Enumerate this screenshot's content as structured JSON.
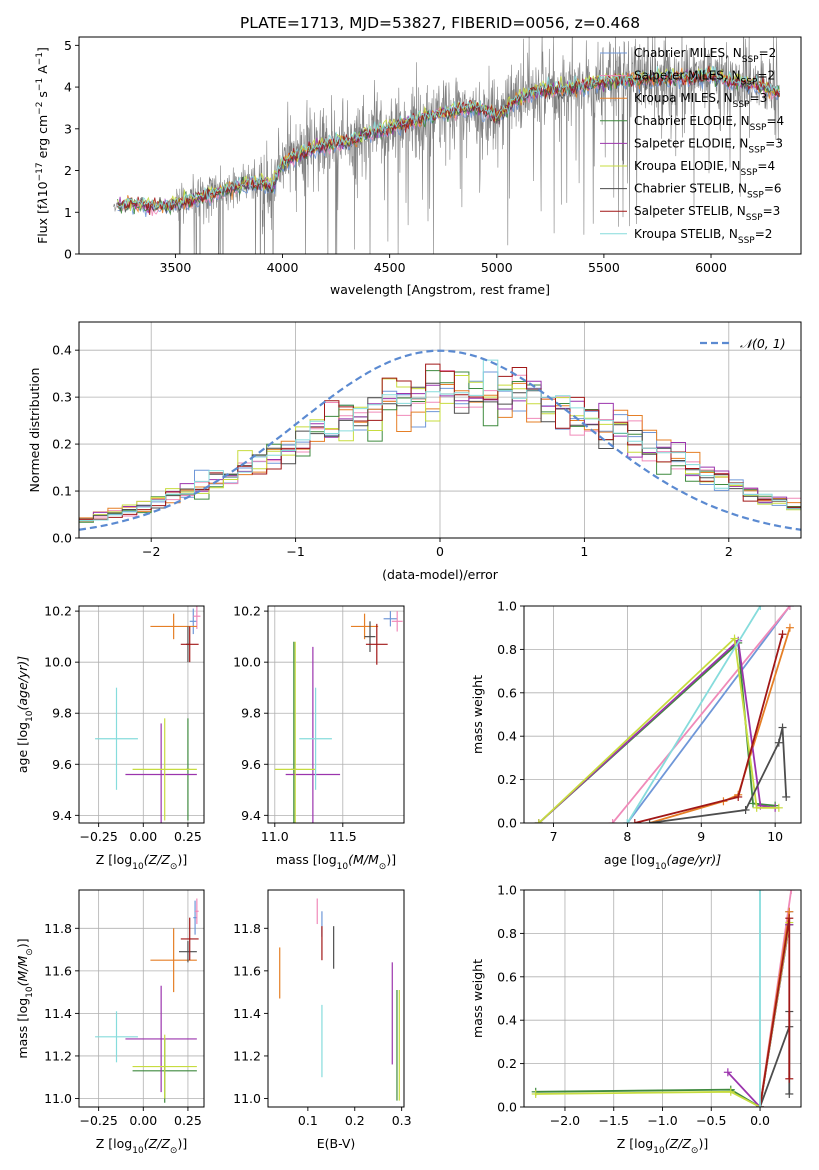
{
  "figure": {
    "title": "PLATE=1713, MJD=53827, FIBERID=0056, z=0.468"
  },
  "colors": {
    "Chabrier MILES": "#6f97d8",
    "Salpeter MILES": "#f08ab9",
    "Kroupa MILES": "#e57f26",
    "Chabrier ELODIE": "#3f8a3f",
    "Salpeter ELODIE": "#9b34ad",
    "Kroupa ELODIE": "#c7dc3f",
    "Chabrier STELIB": "#4d4d4d",
    "Salpeter STELIB": "#a11717",
    "Kroupa STELIB": "#86dcdc",
    "data": "#808080",
    "normal": "#5b8ad1",
    "grid": "#b0b0b0"
  },
  "chart_data": [
    {
      "id": "spectrum",
      "type": "line",
      "title": "PLATE=1713, MJD=53827, FIBERID=0056, z=0.468",
      "xlabel": "wavelength [Angstrom, rest frame]",
      "ylabel": "Flux [f",
      "ylabel_parts": [
        "Flux [f",
        "λ",
        "10",
        "−17",
        " erg cm",
        "−2",
        " s",
        "−1",
        " A",
        "−1",
        "]"
      ],
      "xlim": [
        3050,
        6420
      ],
      "ylim": [
        0,
        5.2
      ],
      "xticks": [
        3500,
        4000,
        4500,
        5000,
        5500,
        6000
      ],
      "yticks": [
        0,
        1,
        2,
        3,
        4,
        5
      ],
      "grid": false,
      "legend_placement": "top-right",
      "legend": [
        {
          "name": "Chabrier MILES",
          "base": "Chabrier MILES, N",
          "sub": "SSP",
          "tail": "=2"
        },
        {
          "name": "Salpeter MILES",
          "base": "Salpeter MILES, N",
          "sub": "SSP",
          "tail": "=2"
        },
        {
          "name": "Kroupa MILES",
          "base": "Kroupa MILES, N",
          "sub": "SSP",
          "tail": "=3"
        },
        {
          "name": "Chabrier ELODIE",
          "base": "Chabrier ELODIE, N",
          "sub": "SSP",
          "tail": "=4"
        },
        {
          "name": "Salpeter ELODIE",
          "base": "Salpeter ELODIE, N",
          "sub": "SSP",
          "tail": "=3"
        },
        {
          "name": "Kroupa ELODIE",
          "base": "Kroupa ELODIE, N",
          "sub": "SSP",
          "tail": "=4"
        },
        {
          "name": "Chabrier STELIB",
          "base": "Chabrier STELIB, N",
          "sub": "SSP",
          "tail": "=6"
        },
        {
          "name": "Salpeter STELIB",
          "base": "Salpeter STELIB, N",
          "sub": "SSP",
          "tail": "=3"
        },
        {
          "name": "Kroupa STELIB",
          "base": "Kroupa STELIB, N",
          "sub": "SSP",
          "tail": "=2"
        }
      ],
      "continuum": {
        "x": [
          3210,
          3300,
          3400,
          3500,
          3600,
          3700,
          3800,
          3900,
          3950,
          4000,
          4100,
          4200,
          4300,
          4400,
          4500,
          4600,
          4700,
          4800,
          4900,
          5000,
          5100,
          5200,
          5300,
          5400,
          5500,
          5600,
          5700,
          5800,
          5900,
          6000,
          6100,
          6200,
          6300
        ],
        "y": [
          1.15,
          1.22,
          1.15,
          1.2,
          1.35,
          1.5,
          1.65,
          1.75,
          1.6,
          2.2,
          2.45,
          2.65,
          2.7,
          2.9,
          3.05,
          3.2,
          3.35,
          3.45,
          3.55,
          3.3,
          3.75,
          3.95,
          3.95,
          4.05,
          4.15,
          4.2,
          4.2,
          4.25,
          4.25,
          4.3,
          4.15,
          4.1,
          3.9
        ]
      },
      "data_x_range": [
        3210,
        6320
      ],
      "data_scatter": 0.6
    },
    {
      "id": "residuals",
      "type": "histogram",
      "xlabel": "(data-model)/error",
      "ylabel": "Normed distribution",
      "xlim": [
        -2.5,
        2.5
      ],
      "ylim": [
        0,
        0.46
      ],
      "xticks": [
        -2,
        -1,
        0,
        1,
        2
      ],
      "yticks": [
        0.0,
        0.1,
        0.2,
        0.3,
        0.4
      ],
      "grid": true,
      "bin_width": 0.1,
      "legend": [
        {
          "name": "normal",
          "label": "𝒩(0, 1)"
        }
      ],
      "legend_placement": "top-right"
    },
    {
      "id": "age-vs-Z",
      "type": "scatter",
      "xlabel": "Z [log",
      "ylabel": "age  [log",
      "xlabel_parts": [
        "Z [log",
        "10",
        "(Z/Z",
        "⊙",
        ")]"
      ],
      "ylabel_parts": [
        "age  [log",
        "10",
        "(age/yr)]"
      ],
      "xlim": [
        -0.36,
        0.34
      ],
      "ylim": [
        9.37,
        10.22
      ],
      "xticks": [
        -0.25,
        0.0,
        0.25
      ],
      "yticks": [
        9.4,
        9.6,
        9.8,
        10.0,
        10.2
      ],
      "grid": true,
      "points": [
        {
          "model": "Chabrier MILES",
          "x": 0.28,
          "y": 10.16,
          "xerr": 0.02,
          "yerr": 0.05
        },
        {
          "model": "Salpeter MILES",
          "x": 0.3,
          "y": 10.18,
          "xerr": 0.02,
          "yerr": 0.05
        },
        {
          "model": "Kroupa MILES",
          "x": 0.17,
          "y": 10.14,
          "xerr": 0.13,
          "yerr": 0.05
        },
        {
          "model": "Chabrier ELODIE",
          "x": 0.25,
          "y": 9.58,
          "xerr": 0.01,
          "yerr": 0.2
        },
        {
          "model": "Salpeter ELODIE",
          "x": 0.1,
          "y": 9.56,
          "xerr": 0.2,
          "yerr": 0.2
        },
        {
          "model": "Kroupa ELODIE",
          "x": 0.12,
          "y": 9.58,
          "xerr": 0.18,
          "yerr": 0.2
        },
        {
          "model": "Chabrier STELIB",
          "x": 0.25,
          "y": 10.07,
          "xerr": 0.01,
          "yerr": 0.07
        },
        {
          "model": "Salpeter STELIB",
          "x": 0.26,
          "y": 10.07,
          "xerr": 0.05,
          "yerr": 0.07
        },
        {
          "model": "Kroupa STELIB",
          "x": -0.15,
          "y": 9.7,
          "xerr": 0.12,
          "yerr": 0.2
        }
      ]
    },
    {
      "id": "age-vs-mass",
      "type": "scatter",
      "xlabel": "mass [log",
      "xlabel_parts": [
        "mass [log",
        "10",
        "(M/M",
        "⊙",
        ")]"
      ],
      "xlim": [
        10.95,
        11.95
      ],
      "ylim": [
        9.37,
        10.22
      ],
      "xticks": [
        11.0,
        11.5
      ],
      "yticks": [
        9.4,
        9.6,
        9.8,
        10.0,
        10.2
      ],
      "grid": true,
      "points": [
        {
          "model": "Chabrier MILES",
          "x": 11.85,
          "y": 10.17,
          "xerr": 0.05,
          "yerr": 0.03
        },
        {
          "model": "Salpeter MILES",
          "x": 11.9,
          "y": 10.16,
          "xerr": 0.04,
          "yerr": 0.04
        },
        {
          "model": "Kroupa MILES",
          "x": 11.66,
          "y": 10.14,
          "xerr": 0.1,
          "yerr": 0.05
        },
        {
          "model": "Chabrier ELODIE",
          "x": 11.14,
          "y": 9.58,
          "xerr": 0.02,
          "yerr": 0.5
        },
        {
          "model": "Salpeter ELODIE",
          "x": 11.28,
          "y": 9.56,
          "xerr": 0.2,
          "yerr": 0.5
        },
        {
          "model": "Kroupa ELODIE",
          "x": 11.15,
          "y": 9.58,
          "xerr": 0.15,
          "yerr": 0.5
        },
        {
          "model": "Chabrier STELIB",
          "x": 11.7,
          "y": 10.1,
          "xerr": 0.04,
          "yerr": 0.06
        },
        {
          "model": "Salpeter STELIB",
          "x": 11.75,
          "y": 10.07,
          "xerr": 0.08,
          "yerr": 0.08
        },
        {
          "model": "Kroupa STELIB",
          "x": 11.3,
          "y": 9.7,
          "xerr": 0.12,
          "yerr": 0.2
        }
      ]
    },
    {
      "id": "mass-weight-vs-age",
      "type": "line",
      "xlabel": "age  [log",
      "ylabel": "mass weight",
      "xlabel_parts": [
        "age  [log",
        "10",
        "(age/yr)]"
      ],
      "xlim": [
        6.6,
        10.35
      ],
      "ylim": [
        0,
        1.0
      ],
      "xticks": [
        7,
        8,
        9,
        10
      ],
      "yticks": [
        0.0,
        0.2,
        0.4,
        0.6,
        0.8,
        1.0
      ],
      "grid": true,
      "series": [
        {
          "model": "Chabrier MILES",
          "x": [
            8.0,
            10.2
          ],
          "y": [
            0.0,
            1.0
          ]
        },
        {
          "model": "Salpeter MILES",
          "x": [
            7.8,
            10.2
          ],
          "y": [
            0.0,
            1.0
          ]
        },
        {
          "model": "Kroupa MILES",
          "x": [
            8.3,
            9.3,
            9.5,
            10.2
          ],
          "y": [
            0.0,
            0.1,
            0.13,
            0.9
          ]
        },
        {
          "model": "Chabrier ELODIE",
          "x": [
            6.8,
            9.5,
            9.7,
            10.0
          ],
          "y": [
            0.0,
            0.83,
            0.09,
            0.08
          ]
        },
        {
          "model": "Salpeter ELODIE",
          "x": [
            6.8,
            9.5,
            9.8,
            10.0
          ],
          "y": [
            0.0,
            0.84,
            0.08,
            0.07
          ]
        },
        {
          "model": "Kroupa ELODIE",
          "x": [
            6.8,
            9.45,
            9.75,
            10.05
          ],
          "y": [
            0.0,
            0.85,
            0.07,
            0.07
          ]
        },
        {
          "model": "Chabrier STELIB",
          "x": [
            8.3,
            9.6,
            10.05,
            10.1,
            10.15
          ],
          "y": [
            0.0,
            0.06,
            0.37,
            0.44,
            0.12
          ]
        },
        {
          "model": "Salpeter STELIB",
          "x": [
            8.1,
            9.5,
            10.1
          ],
          "y": [
            0.0,
            0.12,
            0.87
          ]
        },
        {
          "model": "Kroupa STELIB",
          "x": [
            8.0,
            9.8
          ],
          "y": [
            0.0,
            1.0
          ]
        }
      ]
    },
    {
      "id": "mass-vs-Z",
      "type": "scatter",
      "xlabel": "Z [log",
      "ylabel": "mass [log",
      "xlabel_parts": [
        "Z [log",
        "10",
        "(Z/Z",
        "⊙",
        ")]"
      ],
      "ylabel_parts": [
        "mass [log",
        "10",
        "(M/M",
        "⊙",
        ")]"
      ],
      "xlim": [
        -0.36,
        0.34
      ],
      "ylim": [
        10.96,
        11.98
      ],
      "xticks": [
        -0.25,
        0.0,
        0.25
      ],
      "yticks": [
        11.0,
        11.2,
        11.4,
        11.6,
        11.8
      ],
      "grid": true,
      "points": [
        {
          "model": "Chabrier MILES",
          "x": 0.29,
          "y": 11.85,
          "xerr": 0.01,
          "yerr": 0.08
        },
        {
          "model": "Salpeter MILES",
          "x": 0.3,
          "y": 11.88,
          "xerr": 0.01,
          "yerr": 0.06
        },
        {
          "model": "Kroupa MILES",
          "x": 0.17,
          "y": 11.65,
          "xerr": 0.13,
          "yerr": 0.15
        },
        {
          "model": "Chabrier ELODIE",
          "x": 0.12,
          "y": 11.13,
          "xerr": 0.18,
          "yerr": 0.15
        },
        {
          "model": "Salpeter ELODIE",
          "x": 0.1,
          "y": 11.28,
          "xerr": 0.2,
          "yerr": 0.25
        },
        {
          "model": "Kroupa ELODIE",
          "x": 0.12,
          "y": 11.15,
          "xerr": 0.18,
          "yerr": 0.15
        },
        {
          "model": "Chabrier STELIB",
          "x": 0.25,
          "y": 11.69,
          "xerr": 0.05,
          "yerr": 0.05
        },
        {
          "model": "Salpeter STELIB",
          "x": 0.26,
          "y": 11.75,
          "xerr": 0.05,
          "yerr": 0.1
        },
        {
          "model": "Kroupa STELIB",
          "x": -0.15,
          "y": 11.29,
          "xerr": 0.12,
          "yerr": 0.12
        }
      ]
    },
    {
      "id": "mass-vs-ebv",
      "type": "scatter",
      "xlabel": "E(B-V)",
      "xlim": [
        0.015,
        0.305
      ],
      "ylim": [
        10.96,
        11.98
      ],
      "xticks": [
        0.1,
        0.2,
        0.3
      ],
      "yticks": [
        11.0,
        11.2,
        11.4,
        11.6,
        11.8
      ],
      "grid": false,
      "points": [
        {
          "model": "Chabrier MILES",
          "x": 0.13,
          "y": 11.82,
          "xerr": 0,
          "yerr": 0.06
        },
        {
          "model": "Salpeter MILES",
          "x": 0.12,
          "y": 11.88,
          "xerr": 0,
          "yerr": 0.06
        },
        {
          "model": "Kroupa MILES",
          "x": 0.04,
          "y": 11.59,
          "xerr": 0,
          "yerr": 0.12
        },
        {
          "model": "Chabrier ELODIE",
          "x": 0.29,
          "y": 11.25,
          "xerr": 0,
          "yerr": 0.26
        },
        {
          "model": "Salpeter ELODIE",
          "x": 0.28,
          "y": 11.4,
          "xerr": 0,
          "yerr": 0.24
        },
        {
          "model": "Kroupa ELODIE",
          "x": 0.295,
          "y": 11.25,
          "xerr": 0,
          "yerr": 0.26
        },
        {
          "model": "Chabrier STELIB",
          "x": 0.155,
          "y": 11.71,
          "xerr": 0,
          "yerr": 0.1
        },
        {
          "model": "Salpeter STELIB",
          "x": 0.13,
          "y": 11.73,
          "xerr": 0,
          "yerr": 0.08
        },
        {
          "model": "Kroupa STELIB",
          "x": 0.13,
          "y": 11.27,
          "xerr": 0,
          "yerr": 0.17
        }
      ]
    },
    {
      "id": "mass-weight-vs-Z",
      "type": "line",
      "xlabel": "Z [log",
      "ylabel": "mass weight",
      "xlabel_parts": [
        "Z [log",
        "10",
        "(Z/Z",
        "⊙",
        ")]"
      ],
      "xlim": [
        -2.42,
        0.42
      ],
      "ylim": [
        0,
        1.0
      ],
      "xticks": [
        -2.0,
        -1.5,
        -1.0,
        -0.5,
        0.0
      ],
      "yticks": [
        0.0,
        0.2,
        0.4,
        0.6,
        0.8,
        1.0
      ],
      "grid": true,
      "series": [
        {
          "model": "Chabrier MILES",
          "x": [
            0.0,
            0.3
          ],
          "y": [
            0.0,
            0.9
          ]
        },
        {
          "model": "Salpeter MILES",
          "x": [
            0.0,
            0.32
          ],
          "y": [
            0.0,
            1.0
          ]
        },
        {
          "model": "Kroupa MILES",
          "x": [
            0.0,
            0.3
          ],
          "y": [
            0.0,
            0.9
          ]
        },
        {
          "model": "Chabrier ELODIE",
          "x": [
            -2.3,
            -0.3,
            0.0,
            0.3
          ],
          "y": [
            0.07,
            0.08,
            0.0,
            0.84
          ]
        },
        {
          "model": "Salpeter ELODIE",
          "x": [
            -0.33,
            0.0,
            0.3
          ],
          "y": [
            0.16,
            0.0,
            0.84
          ]
        },
        {
          "model": "Kroupa ELODIE",
          "x": [
            -2.3,
            -0.3,
            0.0,
            0.3
          ],
          "y": [
            0.06,
            0.07,
            0.0,
            0.85
          ]
        },
        {
          "model": "Chabrier STELIB",
          "x": [
            0.0,
            0.3,
            0.3,
            0.3
          ],
          "y": [
            0.0,
            0.37,
            0.44,
            0.06
          ]
        },
        {
          "model": "Salpeter STELIB",
          "x": [
            0.0,
            0.3,
            0.3
          ],
          "y": [
            0.0,
            0.87,
            0.13
          ]
        },
        {
          "model": "Kroupa STELIB",
          "x": [
            0.0,
            0.0
          ],
          "y": [
            0.0,
            1.0
          ]
        }
      ]
    }
  ]
}
